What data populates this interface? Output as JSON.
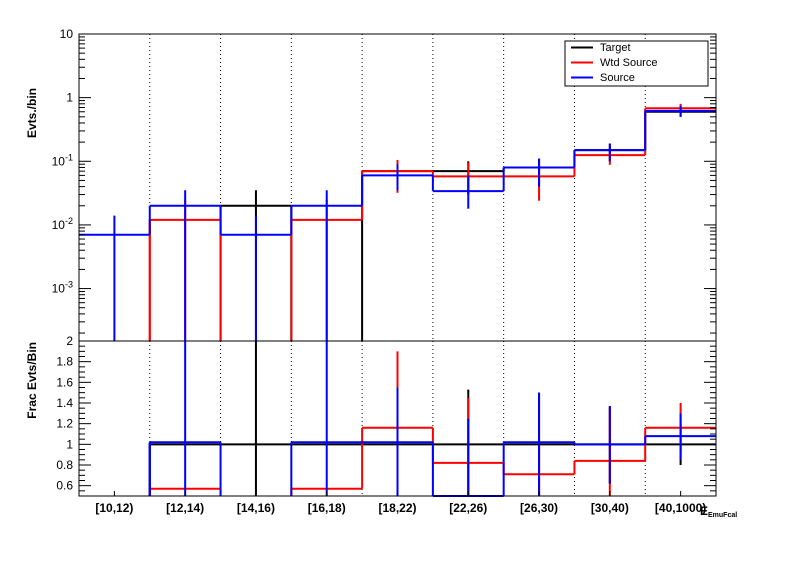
{
  "chart_data": [
    {
      "type": "line",
      "panel": "top",
      "ylabel": "Evts./bin",
      "yscale": "log",
      "ylim": [
        0.00015,
        10
      ],
      "yticks": [
        {
          "value": 10,
          "mant": "10",
          "exp": ""
        },
        {
          "value": 1,
          "mant": "1",
          "exp": ""
        },
        {
          "value": 0.1,
          "mant": "10",
          "exp": "-1"
        },
        {
          "value": 0.01,
          "mant": "10",
          "exp": "-2"
        },
        {
          "value": 0.001,
          "mant": "10",
          "exp": "-3"
        }
      ],
      "categories": [
        "[10,12)",
        "[12,14)",
        "[14,16)",
        "[16,18)",
        "[18,22)",
        "[22,26)",
        "[26,30)",
        "[30,40)",
        "[40,1000)"
      ],
      "legend": {
        "position": "top-right",
        "entries": [
          "Target",
          "Wtd Source",
          "Source"
        ]
      },
      "series": [
        {
          "name": "Target",
          "color": "#000000",
          "values": [
            0,
            0,
            0.02,
            0,
            0.07,
            0.07,
            0.08,
            0.15,
            0.6
          ],
          "err_low": [
            0,
            0,
            0.00015,
            0,
            0.035,
            0.03,
            0.04,
            0.1,
            0.5
          ],
          "err_high": [
            0,
            0,
            0.035,
            0,
            0.1,
            0.1,
            0.11,
            0.19,
            0.72
          ]
        },
        {
          "name": "Wtd Source",
          "color": "#ff0000",
          "values": [
            0,
            0.012,
            0,
            0.012,
            0.07,
            0.058,
            0.058,
            0.125,
            0.68
          ],
          "err_low": [
            0,
            0.00015,
            0,
            0.00015,
            0.032,
            0.03,
            0.024,
            0.088,
            0.56
          ],
          "err_high": [
            0,
            0.025,
            0,
            0.025,
            0.105,
            0.095,
            0.095,
            0.16,
            0.8
          ]
        },
        {
          "name": "Source",
          "color": "#0000ff",
          "values": [
            0.007,
            0.02,
            0.007,
            0.02,
            0.06,
            0.034,
            0.08,
            0.15,
            0.62
          ],
          "err_low": [
            0.00015,
            0.00015,
            0.00015,
            0.00015,
            0.035,
            0.018,
            0.04,
            0.1,
            0.5
          ],
          "err_high": [
            0.014,
            0.035,
            0.014,
            0.035,
            0.09,
            0.06,
            0.11,
            0.19,
            0.75
          ]
        }
      ]
    },
    {
      "type": "line",
      "panel": "bottom",
      "ylabel": "Frac Evts/Bin",
      "ylim": [
        0.5,
        2
      ],
      "yticks": [
        0.6,
        0.8,
        1,
        1.2,
        1.4,
        1.6,
        1.8,
        2
      ],
      "xlabel": "E",
      "xlabel_sub": "EmuFcal",
      "categories": [
        "[10,12)",
        "[12,14)",
        "[14,16)",
        "[16,18)",
        "[18,22)",
        "[22,26)",
        "[26,30)",
        "[30,40)",
        "[40,1000)"
      ],
      "series": [
        {
          "name": "Target",
          "color": "#000000",
          "values": [
            0,
            1,
            1,
            1,
            1,
            1,
            1,
            1,
            1
          ],
          "err_low": [
            0,
            0,
            0.5,
            0,
            0.5,
            0.5,
            0.5,
            0.62,
            0.8
          ],
          "err_high": [
            0,
            0,
            2,
            0,
            1.55,
            1.53,
            1.5,
            1.37,
            1.2
          ]
        },
        {
          "name": "Wtd Source",
          "color": "#ff0000",
          "values": [
            0,
            0.57,
            0,
            0.57,
            1.16,
            0.82,
            0.71,
            0.84,
            1.16
          ],
          "err_low": [
            0,
            0,
            0,
            0,
            0.5,
            0.5,
            0.5,
            0.5,
            0.92
          ],
          "err_high": [
            0,
            0,
            0,
            0,
            1.9,
            1.45,
            1.0,
            1.35,
            1.4
          ]
        },
        {
          "name": "Source",
          "color": "#0000ff",
          "values": [
            0,
            1.02,
            0,
            1.02,
            1.02,
            0.5,
            1.02,
            1.0,
            1.08
          ],
          "err_low": [
            0,
            0.5,
            0,
            0.5,
            0.5,
            0.5,
            0.5,
            0.62,
            0.85
          ],
          "err_high": [
            0,
            2,
            0,
            2,
            1.55,
            1.25,
            1.5,
            1.37,
            1.3
          ]
        }
      ]
    }
  ]
}
